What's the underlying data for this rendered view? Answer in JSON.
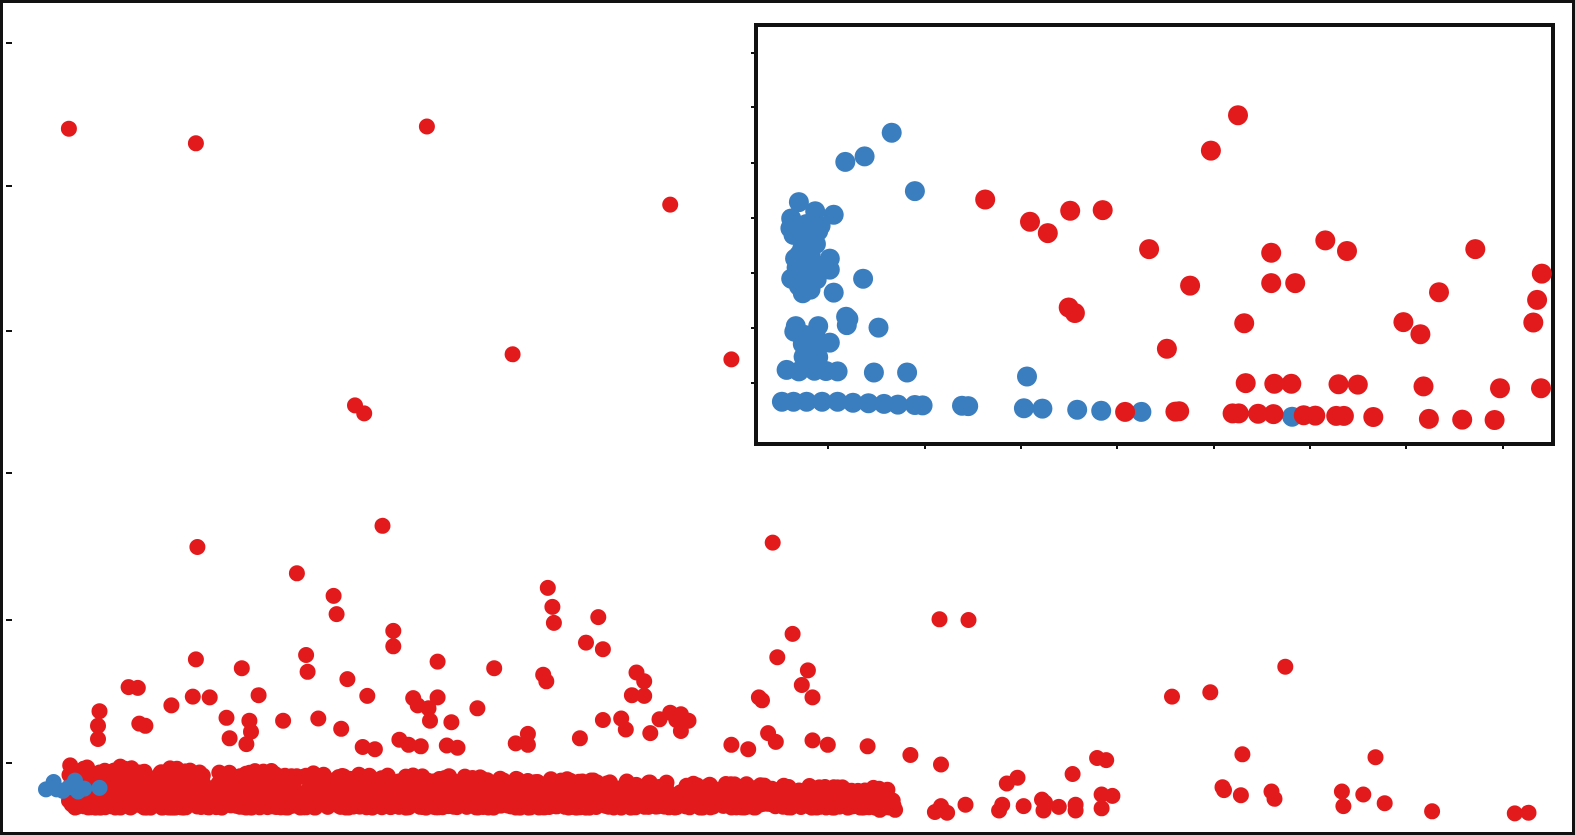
{
  "colors": {
    "series_red": "#e31a1c",
    "series_blue": "#3a7ebf",
    "axis": "#111111",
    "background": "#ffffff"
  },
  "chart_data": [
    {
      "type": "scatter",
      "role": "main",
      "title": "",
      "xlabel": "",
      "ylabel": "",
      "xlim": [
        0,
        100
      ],
      "ylim": [
        0,
        100
      ],
      "grid": false,
      "legend": "none",
      "series": [
        {
          "color": "#3a7ebf",
          "points": [
            [
              1.5,
              0.5
            ],
            [
              2.2,
              0.5
            ],
            [
              3.0,
              0.8
            ],
            [
              2.0,
              1.5
            ],
            [
              3.4,
              1.7
            ],
            [
              4.0,
              0.6
            ],
            [
              3.6,
              0.2
            ],
            [
              2.6,
              0.3
            ],
            [
              5.0,
              0.7
            ]
          ]
        },
        {
          "color": "#e31a1c",
          "points": [
            [
              3.0,
              91.0
            ],
            [
              11.3,
              89.0
            ],
            [
              26.4,
              91.3
            ],
            [
              42.3,
              80.6
            ],
            [
              32.0,
              60.1
            ],
            [
              46.3,
              59.4
            ],
            [
              21.7,
              53.1
            ],
            [
              22.3,
              52.0
            ],
            [
              23.5,
              36.6
            ],
            [
              11.4,
              33.7
            ],
            [
              49.0,
              34.3
            ],
            [
              17.9,
              30.1
            ],
            [
              20.3,
              27.0
            ],
            [
              20.5,
              24.5
            ],
            [
              34.3,
              28.1
            ],
            [
              34.6,
              25.5
            ],
            [
              34.7,
              23.3
            ],
            [
              37.6,
              24.1
            ],
            [
              24.2,
              22.2
            ],
            [
              36.8,
              20.6
            ],
            [
              37.9,
              19.7
            ],
            [
              24.2,
              20.1
            ],
            [
              11.3,
              18.3
            ],
            [
              18.5,
              18.9
            ],
            [
              27.1,
              18.0
            ],
            [
              30.8,
              17.1
            ],
            [
              18.6,
              16.6
            ],
            [
              14.3,
              17.1
            ],
            [
              21.2,
              15.6
            ],
            [
              34.0,
              16.2
            ],
            [
              34.2,
              15.3
            ],
            [
              40.1,
              16.5
            ],
            [
              40.6,
              15.3
            ],
            [
              50.3,
              21.8
            ],
            [
              49.3,
              18.6
            ],
            [
              51.3,
              16.8
            ],
            [
              50.9,
              14.8
            ],
            [
              51.6,
              13.1
            ],
            [
              6.9,
              14.5
            ],
            [
              7.5,
              14.4
            ],
            [
              11.1,
              13.2
            ],
            [
              12.2,
              13.1
            ],
            [
              15.4,
              13.4
            ],
            [
              22.5,
              13.3
            ],
            [
              25.5,
              13.0
            ],
            [
              27.1,
              13.1
            ],
            [
              39.8,
              13.4
            ],
            [
              40.6,
              13.3
            ],
            [
              48.1,
              13.1
            ],
            [
              48.3,
              12.7
            ],
            [
              5.0,
              11.2
            ],
            [
              9.7,
              12.0
            ],
            [
              25.8,
              12.0
            ],
            [
              26.5,
              11.6
            ],
            [
              29.7,
              11.6
            ],
            [
              42.3,
              11.0
            ],
            [
              43.0,
              10.8
            ],
            [
              4.9,
              9.2
            ],
            [
              7.6,
              9.5
            ],
            [
              8.0,
              9.2
            ],
            [
              13.3,
              10.3
            ],
            [
              14.8,
              9.9
            ],
            [
              17.0,
              9.9
            ],
            [
              19.3,
              10.2
            ],
            [
              26.6,
              9.9
            ],
            [
              28.0,
              9.7
            ],
            [
              37.9,
              10.0
            ],
            [
              39.1,
              10.2
            ],
            [
              41.6,
              10.1
            ],
            [
              42.7,
              10.0
            ],
            [
              43.5,
              9.9
            ],
            [
              4.9,
              7.4
            ],
            [
              14.9,
              8.4
            ],
            [
              20.8,
              8.8
            ],
            [
              24.6,
              7.3
            ],
            [
              33.0,
              8.1
            ],
            [
              36.4,
              7.5
            ],
            [
              39.4,
              8.7
            ],
            [
              41.0,
              8.2
            ],
            [
              43.0,
              8.5
            ],
            [
              48.7,
              8.2
            ],
            [
              49.2,
              7.0
            ],
            [
              51.6,
              7.2
            ],
            [
              52.6,
              6.6
            ],
            [
              13.5,
              7.5
            ],
            [
              14.6,
              6.7
            ],
            [
              22.2,
              6.3
            ],
            [
              23.0,
              6.0
            ],
            [
              25.2,
              6.6
            ],
            [
              26.0,
              6.4
            ],
            [
              27.7,
              6.5
            ],
            [
              28.4,
              6.2
            ],
            [
              32.2,
              6.8
            ],
            [
              33.0,
              6.6
            ],
            [
              46.3,
              6.6
            ],
            [
              47.4,
              6.0
            ],
            [
              55.2,
              6.4
            ],
            [
              58.0,
              5.2
            ],
            [
              59.9,
              23.8
            ],
            [
              61.8,
              23.7
            ],
            [
              75.1,
              13.2
            ],
            [
              77.6,
              13.8
            ],
            [
              82.5,
              17.3
            ],
            [
              79.7,
              5.3
            ],
            [
              70.2,
              4.8
            ],
            [
              70.8,
              4.5
            ],
            [
              88.4,
              4.9
            ],
            [
              60.0,
              3.9
            ],
            [
              68.6,
              2.6
            ],
            [
              65.0,
              2.1
            ],
            [
              64.3,
              1.3
            ],
            [
              78.4,
              0.8
            ],
            [
              78.5,
              0.4
            ],
            [
              79.6,
              -0.3
            ],
            [
              81.6,
              0.2
            ],
            [
              70.5,
              -0.2
            ],
            [
              71.2,
              -0.4
            ],
            [
              68.8,
              -1.6
            ],
            [
              60.0,
              -1.8
            ],
            [
              61.6,
              -1.6
            ],
            [
              64.0,
              -1.6
            ],
            [
              65.4,
              -1.8
            ],
            [
              66.8,
              -1.3
            ],
            [
              67.7,
              -1.9
            ],
            [
              66.6,
              -0.9
            ],
            [
              59.6,
              -2.6
            ],
            [
              60.4,
              -2.7
            ],
            [
              63.8,
              -2.4
            ],
            [
              66.7,
              -2.4
            ],
            [
              68.8,
              -2.4
            ],
            [
              70.5,
              -2.1
            ],
            [
              86.3,
              -1.8
            ],
            [
              92.1,
              -2.5
            ],
            [
              97.5,
              -2.8
            ],
            [
              98.4,
              -2.7
            ],
            [
              56.0,
              -2.3
            ],
            [
              57.0,
              -2.3
            ],
            [
              86.2,
              0.2
            ],
            [
              87.6,
              -0.2
            ],
            [
              81.8,
              -0.8
            ],
            [
              89.0,
              -1.4
            ],
            [
              56.3,
              -1.3
            ],
            [
              55.1,
              -1.5
            ]
          ]
        }
      ],
      "cluster": {
        "color": "#e31a1c",
        "x_range": [
          3.0,
          57.0
        ],
        "y_range": [
          -2.0,
          4.0
        ],
        "count": 1400
      }
    },
    {
      "type": "scatter",
      "role": "inset",
      "title": "",
      "xlabel": "",
      "ylabel": "",
      "xlim": [
        0,
        100
      ],
      "ylim": [
        0,
        100
      ],
      "grid": false,
      "legend": "none",
      "series": [
        {
          "color": "#3a7ebf",
          "points": [
            [
              16.0,
              82.0
            ],
            [
              10.0,
              74.0
            ],
            [
              12.5,
              75.5
            ],
            [
              19.0,
              66.0
            ],
            [
              4.0,
              63.0
            ],
            [
              6.1,
              60.5
            ],
            [
              8.5,
              59.5
            ],
            [
              3.0,
              58.5
            ],
            [
              5.0,
              57.0
            ],
            [
              6.8,
              56.5
            ],
            [
              2.9,
              55.8
            ],
            [
              4.5,
              55.0
            ],
            [
              6.5,
              55.0
            ],
            [
              3.3,
              54.0
            ],
            [
              4.3,
              53.0
            ],
            [
              5.0,
              52.0
            ],
            [
              6.2,
              51.5
            ],
            [
              4.4,
              50.0
            ],
            [
              5.5,
              49.0
            ],
            [
              4.0,
              48.5
            ],
            [
              3.5,
              47.5
            ],
            [
              8.0,
              47.5
            ],
            [
              4.1,
              46.5
            ],
            [
              6.0,
              46.0
            ],
            [
              3.7,
              45.0
            ],
            [
              8.0,
              44.5
            ],
            [
              5.0,
              44.0
            ],
            [
              12.3,
              42.0
            ],
            [
              3.0,
              42.0
            ],
            [
              4.6,
              41.6
            ],
            [
              6.3,
              41.8
            ],
            [
              4.0,
              40.0
            ],
            [
              8.5,
              38.2
            ],
            [
              5.5,
              39.0
            ],
            [
              4.5,
              38.0
            ],
            [
              10.1,
              31.6
            ],
            [
              10.4,
              31.0
            ],
            [
              3.6,
              29.0
            ],
            [
              6.5,
              29.0
            ],
            [
              10.2,
              29.3
            ],
            [
              14.3,
              28.6
            ],
            [
              3.4,
              27.5
            ],
            [
              4.7,
              26.6
            ],
            [
              6.3,
              25.5
            ],
            [
              4.5,
              24.1
            ],
            [
              6.0,
              24.0
            ],
            [
              8.0,
              24.5
            ],
            [
              5.4,
              21.0
            ],
            [
              4.6,
              20.6
            ],
            [
              6.5,
              20.5
            ],
            [
              2.4,
              17.0
            ],
            [
              4.0,
              16.6
            ],
            [
              6.0,
              16.8
            ],
            [
              7.5,
              16.7
            ],
            [
              9.0,
              16.6
            ],
            [
              13.7,
              16.3
            ],
            [
              18.0,
              16.3
            ],
            [
              33.5,
              15.2
            ],
            [
              1.8,
              8.3
            ],
            [
              3.3,
              8.3
            ],
            [
              5.0,
              8.3
            ],
            [
              7.0,
              8.3
            ],
            [
              9.0,
              8.3
            ],
            [
              11.0,
              8.0
            ],
            [
              13.0,
              7.9
            ],
            [
              15.0,
              7.7
            ],
            [
              16.8,
              7.5
            ],
            [
              19.0,
              7.4
            ],
            [
              20.0,
              7.3
            ],
            [
              25.1,
              7.2
            ],
            [
              25.9,
              7.1
            ],
            [
              33.1,
              6.5
            ],
            [
              35.5,
              6.4
            ],
            [
              40.0,
              6.1
            ],
            [
              43.1,
              5.8
            ],
            [
              48.3,
              5.5
            ],
            [
              67.8,
              4.2
            ]
          ]
        },
        {
          "color": "#e31a1c",
          "points": [
            [
              60.8,
              86.8
            ],
            [
              57.3,
              77.1
            ],
            [
              28.1,
              63.7
            ],
            [
              39.1,
              60.6
            ],
            [
              33.9,
              57.6
            ],
            [
              43.3,
              60.8
            ],
            [
              36.2,
              54.5
            ],
            [
              49.3,
              50.1
            ],
            [
              65.1,
              49.1
            ],
            [
              72.1,
              52.5
            ],
            [
              74.9,
              49.6
            ],
            [
              91.5,
              50.1
            ],
            [
              54.6,
              40.1
            ],
            [
              68.2,
              40.8
            ],
            [
              65.1,
              40.8
            ],
            [
              86.8,
              38.3
            ],
            [
              38.9,
              34.1
            ],
            [
              39.7,
              32.6
            ],
            [
              61.6,
              29.8
            ],
            [
              82.2,
              30.1
            ],
            [
              84.4,
              26.8
            ],
            [
              51.6,
              22.8
            ],
            [
              99.0,
              30.0
            ],
            [
              100.1,
              43.4
            ],
            [
              99.5,
              36.2
            ],
            [
              61.8,
              13.4
            ],
            [
              65.5,
              13.2
            ],
            [
              67.7,
              13.2
            ],
            [
              73.8,
              13.1
            ],
            [
              76.3,
              13.0
            ],
            [
              84.8,
              12.5
            ],
            [
              94.7,
              12.0
            ],
            [
              100.0,
              12.0
            ],
            [
              46.2,
              5.5
            ],
            [
              52.7,
              5.6
            ],
            [
              53.2,
              5.7
            ],
            [
              60.1,
              5.1
            ],
            [
              60.9,
              5.1
            ],
            [
              63.4,
              5.0
            ],
            [
              65.4,
              4.9
            ],
            [
              69.3,
              4.6
            ],
            [
              70.8,
              4.5
            ],
            [
              73.5,
              4.4
            ],
            [
              74.5,
              4.4
            ],
            [
              78.3,
              4.1
            ],
            [
              85.5,
              3.6
            ],
            [
              89.8,
              3.4
            ],
            [
              94.0,
              3.3
            ]
          ]
        }
      ]
    }
  ]
}
